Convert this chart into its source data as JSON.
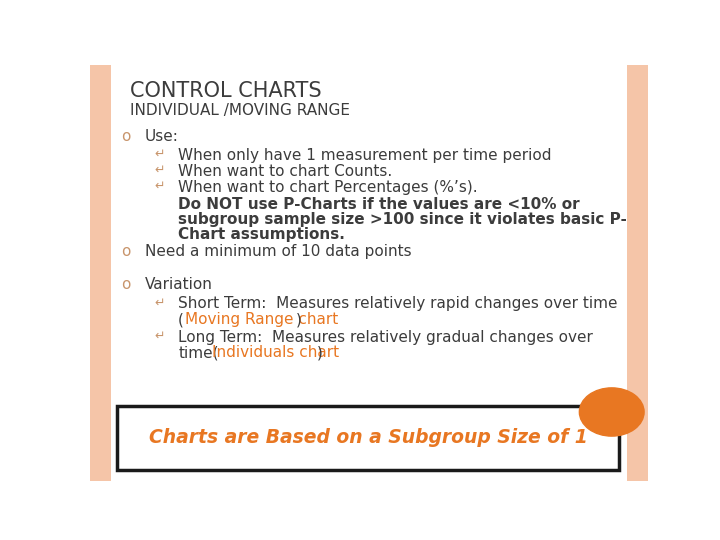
{
  "title_line1": "CONTROL CHARTS",
  "title_line2": "INDIVIDUAL /MOVING RANGE",
  "bg_color": "#FFFFFF",
  "left_strip_color": "#F5C5A8",
  "right_strip_color": "#F5C5A8",
  "orange_color": "#E87722",
  "dark_text": "#3C3C3C",
  "bold_text": "#3C3C3C",
  "bullet_color": "#C8956C",
  "main_bullet_color": "#C8956C",
  "bottom_box_border": "#1A1A1A",
  "bottom_text_color": "#E87722",
  "bottom_text": "Charts are Based on a Subgroup Size of 1",
  "sub_bullet_char": "∞",
  "main_bullet_char": "o"
}
